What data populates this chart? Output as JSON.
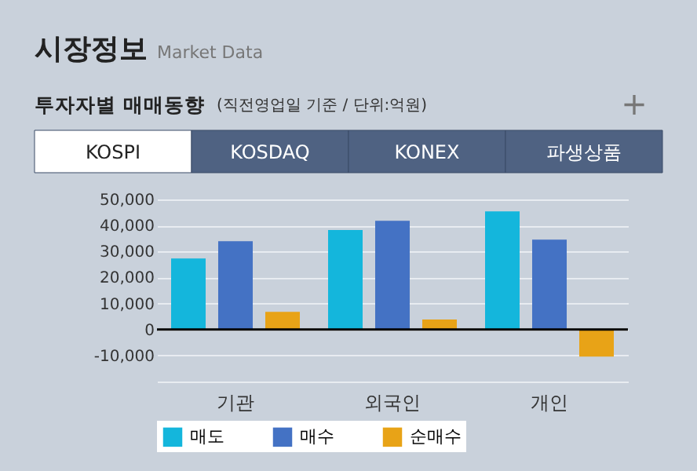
{
  "chart_data": {
    "type": "bar",
    "title": "시장정보",
    "subtitle": "Market Data",
    "annotations": [
      "투자자별 매매동향",
      "(직전영업일 기준 / 단위:억원)",
      "+",
      "KOSPI",
      "KOSDAQ",
      "KONEX",
      "파생상품"
    ],
    "categories": [
      "기관",
      "외국인",
      "개인"
    ],
    "series": [
      {
        "name": "매도",
        "color": "#14b6dc",
        "values": [
          27300,
          38200,
          45400
        ]
      },
      {
        "name": "매수",
        "color": "#4472c4",
        "values": [
          33900,
          41800,
          34500
        ]
      },
      {
        "name": "순매수",
        "color": "#e8a317",
        "values": [
          6800,
          3800,
          -10400
        ]
      }
    ],
    "ylim": [
      -20000,
      50000
    ],
    "yticks": [
      {
        "value": -20000,
        "label": null
      },
      {
        "value": -10000,
        "label": "-10,000"
      },
      {
        "value": 0,
        "label": "0"
      },
      {
        "value": 10000,
        "label": "10,000"
      },
      {
        "value": 20000,
        "label": "20,000"
      },
      {
        "value": 30000,
        "label": "30,000"
      },
      {
        "value": 40000,
        "label": "40,000"
      },
      {
        "value": 50000,
        "label": "50,000"
      }
    ],
    "ref_lines": [
      {
        "axis": "y",
        "value": 0,
        "color": "#000000"
      }
    ],
    "grid": "y",
    "legend": "bottom"
  }
}
